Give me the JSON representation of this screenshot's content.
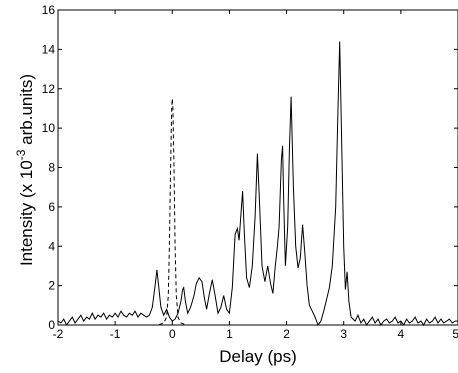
{
  "chart_data": {
    "type": "line",
    "xlabel": "Delay (ps)",
    "ylabel": "Intensity (x 10",
    "ylabel_exponent": "-3",
    "ylabel_suffix": " arb.units)",
    "xlim": [
      -2,
      5
    ],
    "ylim": [
      0,
      16
    ],
    "xticks": [
      -2,
      -1,
      0,
      1,
      2,
      3,
      4,
      5
    ],
    "yticks": [
      0,
      2,
      4,
      6,
      8,
      10,
      12,
      14,
      16
    ],
    "grid": false,
    "legend": "none",
    "series": [
      {
        "style": "solid",
        "color": "#000000",
        "points": [
          [
            -2.0,
            0.2
          ],
          [
            -1.95,
            0.1
          ],
          [
            -1.9,
            0.3
          ],
          [
            -1.85,
            0.0
          ],
          [
            -1.8,
            0.2
          ],
          [
            -1.75,
            0.4
          ],
          [
            -1.7,
            0.1
          ],
          [
            -1.65,
            0.3
          ],
          [
            -1.6,
            0.5
          ],
          [
            -1.55,
            0.2
          ],
          [
            -1.5,
            0.4
          ],
          [
            -1.45,
            0.3
          ],
          [
            -1.4,
            0.6
          ],
          [
            -1.35,
            0.3
          ],
          [
            -1.3,
            0.5
          ],
          [
            -1.25,
            0.4
          ],
          [
            -1.2,
            0.6
          ],
          [
            -1.15,
            0.3
          ],
          [
            -1.1,
            0.5
          ],
          [
            -1.05,
            0.4
          ],
          [
            -1.0,
            0.6
          ],
          [
            -0.95,
            0.4
          ],
          [
            -0.9,
            0.7
          ],
          [
            -0.85,
            0.5
          ],
          [
            -0.8,
            0.4
          ],
          [
            -0.75,
            0.6
          ],
          [
            -0.7,
            0.5
          ],
          [
            -0.65,
            0.7
          ],
          [
            -0.6,
            0.4
          ],
          [
            -0.55,
            0.6
          ],
          [
            -0.5,
            0.5
          ],
          [
            -0.45,
            0.4
          ],
          [
            -0.4,
            0.5
          ],
          [
            -0.35,
            0.9
          ],
          [
            -0.3,
            2.0
          ],
          [
            -0.27,
            2.8
          ],
          [
            -0.24,
            2.0
          ],
          [
            -0.2,
            0.9
          ],
          [
            -0.15,
            0.5
          ],
          [
            -0.1,
            0.8
          ],
          [
            -0.05,
            0.4
          ],
          [
            0.0,
            0.2
          ],
          [
            0.05,
            0.3
          ],
          [
            0.1,
            0.6
          ],
          [
            0.15,
            1.2
          ],
          [
            0.18,
            1.8
          ],
          [
            0.2,
            1.9
          ],
          [
            0.23,
            1.2
          ],
          [
            0.27,
            0.6
          ],
          [
            0.32,
            0.9
          ],
          [
            0.38,
            1.5
          ],
          [
            0.42,
            2.1
          ],
          [
            0.47,
            2.4
          ],
          [
            0.52,
            2.2
          ],
          [
            0.56,
            1.4
          ],
          [
            0.6,
            0.8
          ],
          [
            0.65,
            1.6
          ],
          [
            0.7,
            2.3
          ],
          [
            0.75,
            1.5
          ],
          [
            0.8,
            0.6
          ],
          [
            0.85,
            0.9
          ],
          [
            0.9,
            1.5
          ],
          [
            0.95,
            0.8
          ],
          [
            1.0,
            0.6
          ],
          [
            1.05,
            1.9
          ],
          [
            1.1,
            4.6
          ],
          [
            1.14,
            4.9
          ],
          [
            1.17,
            4.3
          ],
          [
            1.2,
            5.6
          ],
          [
            1.23,
            6.8
          ],
          [
            1.26,
            4.7
          ],
          [
            1.3,
            2.4
          ],
          [
            1.35,
            1.9
          ],
          [
            1.4,
            3.0
          ],
          [
            1.45,
            5.5
          ],
          [
            1.49,
            8.7
          ],
          [
            1.53,
            6.0
          ],
          [
            1.57,
            3.0
          ],
          [
            1.62,
            2.2
          ],
          [
            1.67,
            3.0
          ],
          [
            1.72,
            2.1
          ],
          [
            1.76,
            1.6
          ],
          [
            1.8,
            2.9
          ],
          [
            1.84,
            4.0
          ],
          [
            1.87,
            5.0
          ],
          [
            1.91,
            8.4
          ],
          [
            1.93,
            9.1
          ],
          [
            1.95,
            6.3
          ],
          [
            1.98,
            3.0
          ],
          [
            2.02,
            5.0
          ],
          [
            2.05,
            8.9
          ],
          [
            2.08,
            11.6
          ],
          [
            2.12,
            7.0
          ],
          [
            2.16,
            4.0
          ],
          [
            2.2,
            2.9
          ],
          [
            2.24,
            3.4
          ],
          [
            2.28,
            5.1
          ],
          [
            2.32,
            3.6
          ],
          [
            2.36,
            2.0
          ],
          [
            2.4,
            1.0
          ],
          [
            2.45,
            0.7
          ],
          [
            2.5,
            0.4
          ],
          [
            2.55,
            0.0
          ],
          [
            2.6,
            0.2
          ],
          [
            2.65,
            0.7
          ],
          [
            2.7,
            1.3
          ],
          [
            2.75,
            1.9
          ],
          [
            2.8,
            3.0
          ],
          [
            2.86,
            6.0
          ],
          [
            2.9,
            11.0
          ],
          [
            2.93,
            14.4
          ],
          [
            2.96,
            10.0
          ],
          [
            3.0,
            4.0
          ],
          [
            3.03,
            1.8
          ],
          [
            3.06,
            2.7
          ],
          [
            3.09,
            1.2
          ],
          [
            3.13,
            0.4
          ],
          [
            3.2,
            0.2
          ],
          [
            3.25,
            0.5
          ],
          [
            3.3,
            0.1
          ],
          [
            3.35,
            0.3
          ],
          [
            3.4,
            0.0
          ],
          [
            3.45,
            0.2
          ],
          [
            3.5,
            0.4
          ],
          [
            3.55,
            0.1
          ],
          [
            3.6,
            0.3
          ],
          [
            3.65,
            0.0
          ],
          [
            3.7,
            0.2
          ],
          [
            3.75,
            0.3
          ],
          [
            3.8,
            0.1
          ],
          [
            3.85,
            0.2
          ],
          [
            3.9,
            0.4
          ],
          [
            3.95,
            0.1
          ],
          [
            4.0,
            0.2
          ],
          [
            4.05,
            0.0
          ],
          [
            4.1,
            0.3
          ],
          [
            4.15,
            0.1
          ],
          [
            4.2,
            0.2
          ],
          [
            4.25,
            0.4
          ],
          [
            4.3,
            0.1
          ],
          [
            4.35,
            0.2
          ],
          [
            4.4,
            0.0
          ],
          [
            4.45,
            0.3
          ],
          [
            4.5,
            0.1
          ],
          [
            4.55,
            0.2
          ],
          [
            4.6,
            0.4
          ],
          [
            4.65,
            0.1
          ],
          [
            4.7,
            0.3
          ],
          [
            4.75,
            0.1
          ],
          [
            4.8,
            0.2
          ],
          [
            4.85,
            0.3
          ],
          [
            4.9,
            0.1
          ],
          [
            4.95,
            0.2
          ],
          [
            5.0,
            0.2
          ]
        ]
      },
      {
        "style": "dashed",
        "color": "#000000",
        "points": [
          [
            -0.6,
            0.0
          ],
          [
            -0.4,
            0.0
          ],
          [
            -0.25,
            0.0
          ],
          [
            -0.15,
            0.1
          ],
          [
            -0.1,
            0.4
          ],
          [
            -0.07,
            1.5
          ],
          [
            -0.05,
            4.0
          ],
          [
            -0.03,
            8.0
          ],
          [
            -0.01,
            11.0
          ],
          [
            0.0,
            11.5
          ],
          [
            0.01,
            11.0
          ],
          [
            0.03,
            8.0
          ],
          [
            0.05,
            4.0
          ],
          [
            0.07,
            1.5
          ],
          [
            0.1,
            0.4
          ],
          [
            0.15,
            0.1
          ],
          [
            0.25,
            0.0
          ],
          [
            0.4,
            0.0
          ]
        ]
      }
    ]
  }
}
